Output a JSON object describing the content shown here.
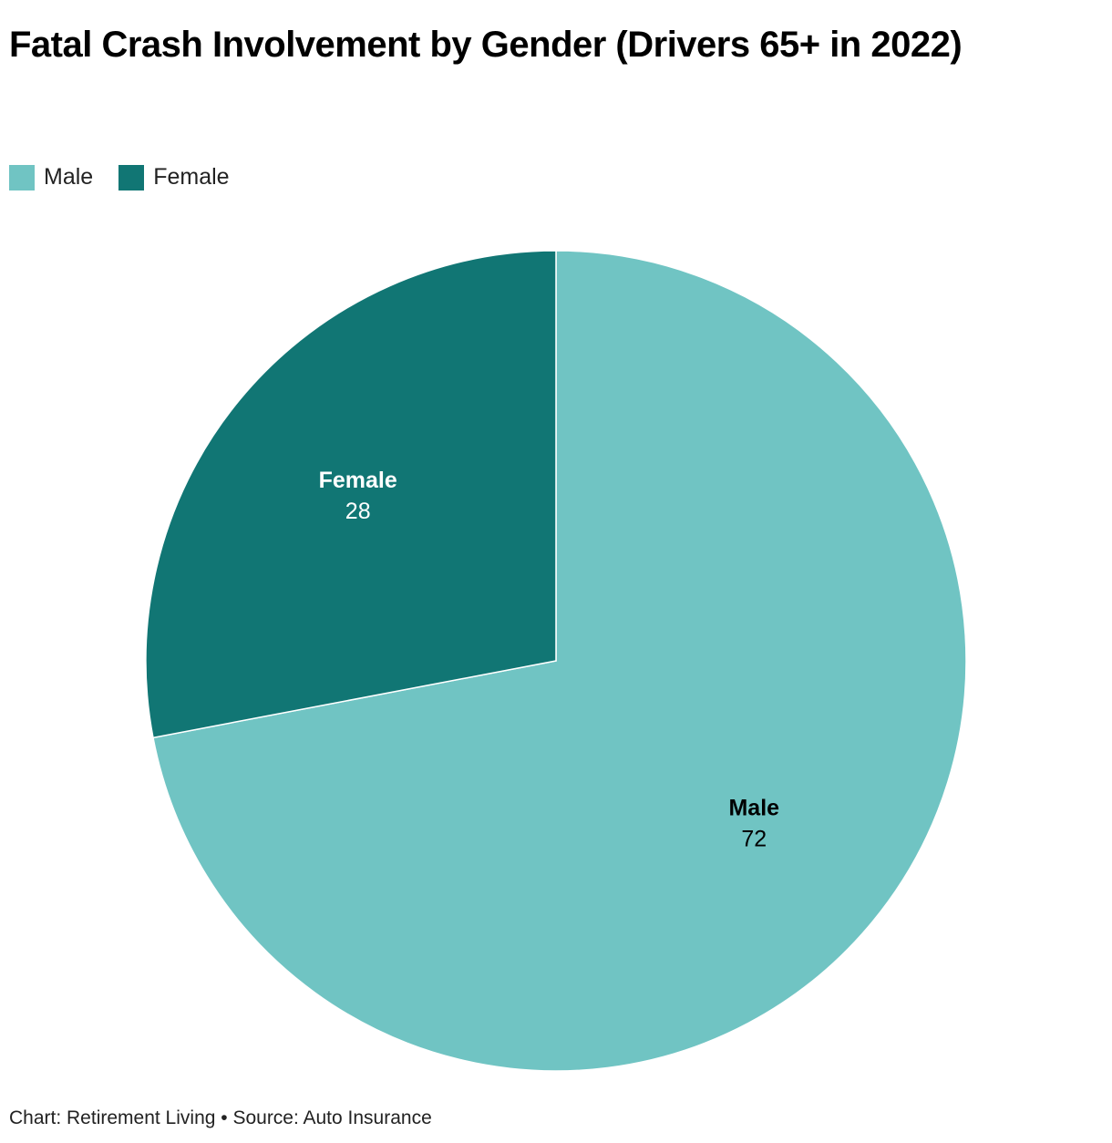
{
  "chart_data": {
    "type": "pie",
    "title": "Fatal Crash Involvement by Gender (Drivers 65+ in 2022)",
    "categories": [
      "Male",
      "Female"
    ],
    "values": [
      72,
      28
    ],
    "colors": [
      "#70c4c3",
      "#117674"
    ],
    "source": "Chart: Retirement Living • Source: Auto Insurance"
  }
}
